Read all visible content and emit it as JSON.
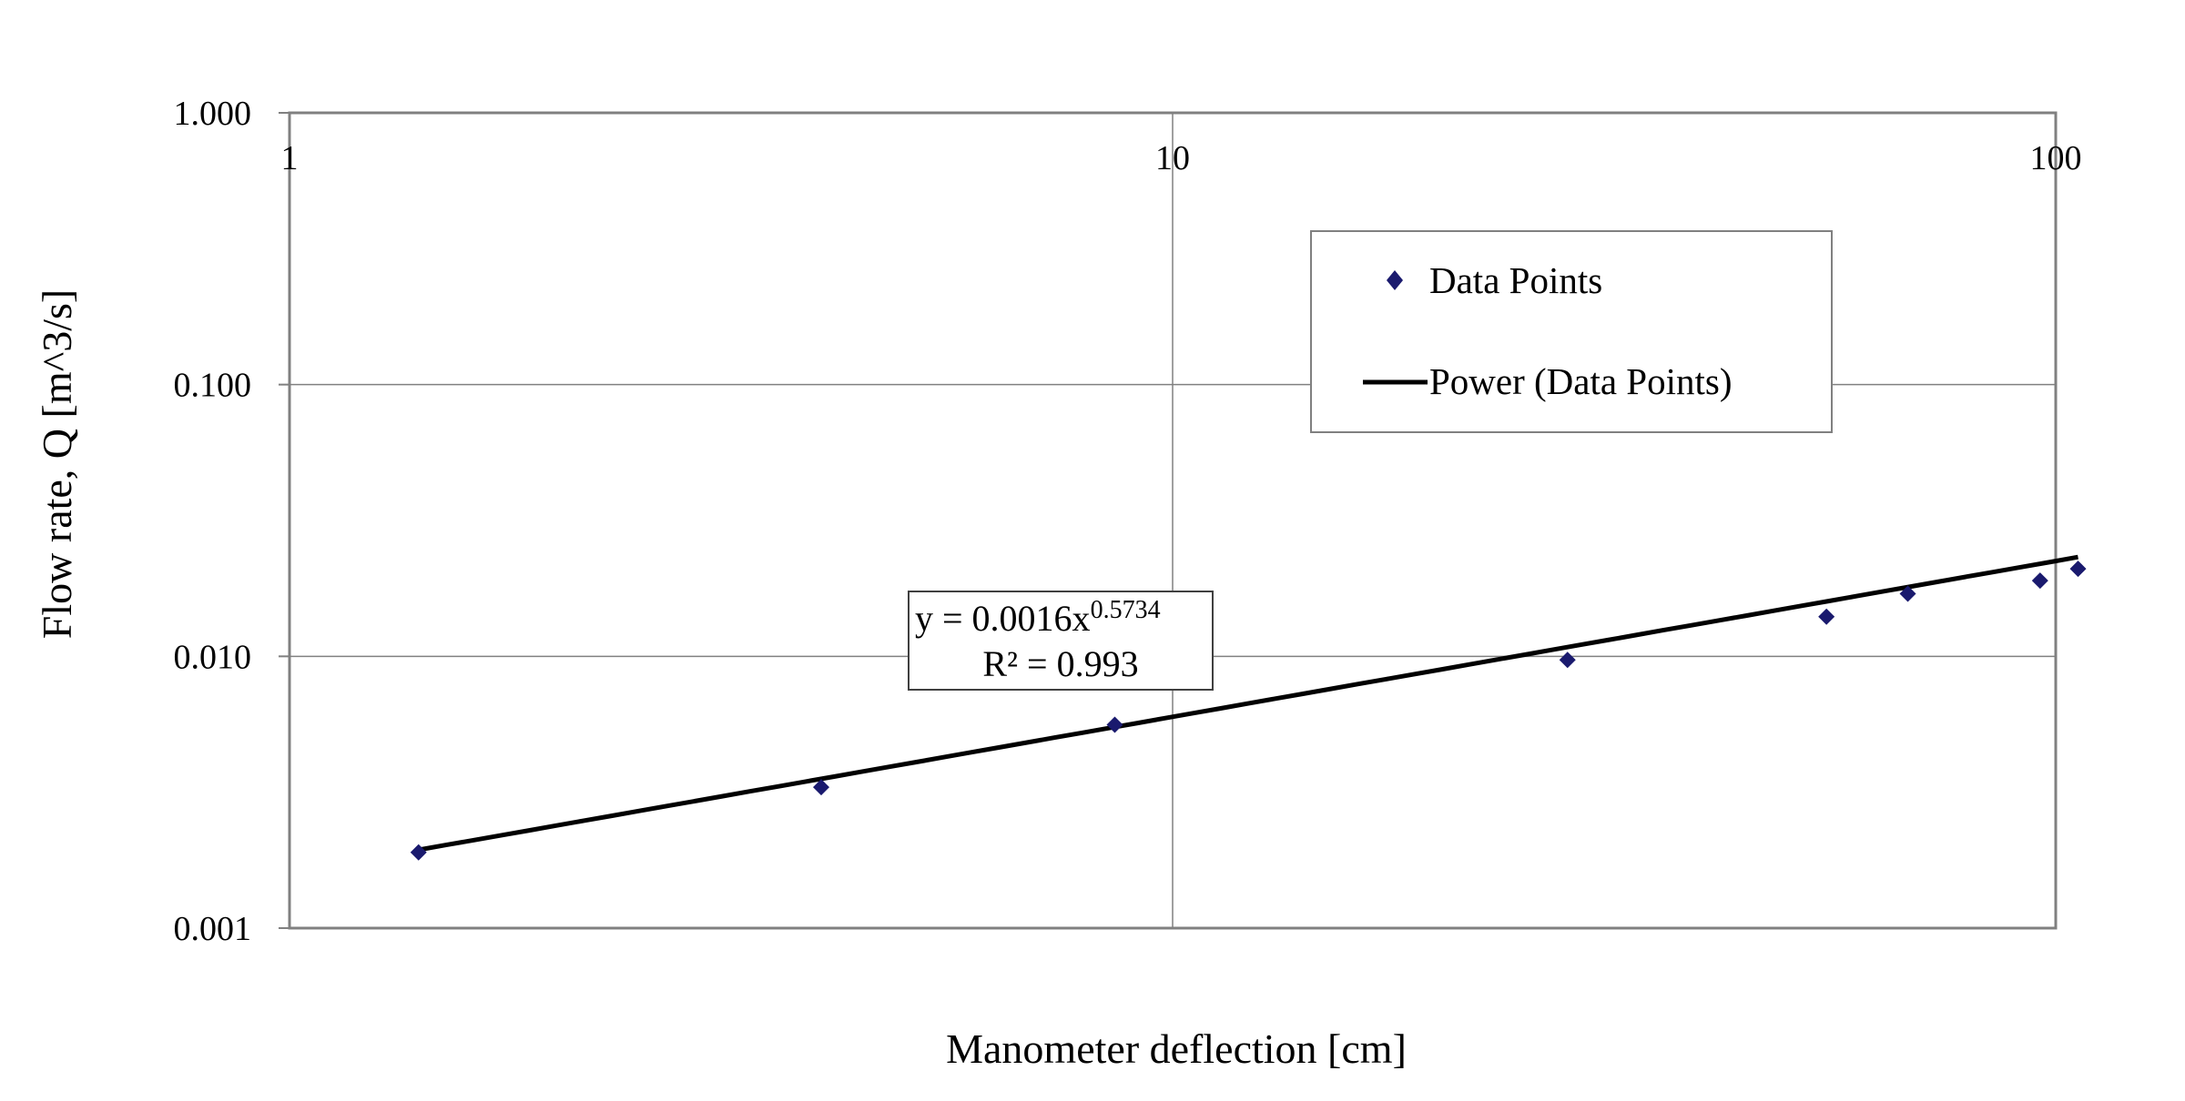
{
  "chart_data": {
    "type": "scatter",
    "xlabel": "Manometer deflection [cm]",
    "ylabel": "Flow rate, Q [m^3/s]",
    "x_scale": "log",
    "y_scale": "log",
    "xlim": [
      1,
      100
    ],
    "ylim": [
      0.001,
      1
    ],
    "x_ticks": [
      "1",
      "10",
      "100"
    ],
    "y_ticks": [
      "1.000",
      "0.100",
      "0.010",
      "0.001"
    ],
    "grid": true,
    "legend_position": "top-right",
    "series": [
      {
        "name": "Data Points",
        "type": "scatter",
        "marker": "diamond",
        "color": "#1a1a6e",
        "x": [
          1.4,
          4.0,
          8.6,
          28.0,
          55.0,
          68.0,
          96.0,
          106.0
        ],
        "y": [
          0.0019,
          0.0033,
          0.0056,
          0.0097,
          0.014,
          0.017,
          0.019,
          0.021
        ]
      },
      {
        "name": "Power (Data Points)",
        "type": "line",
        "color": "#000000",
        "coefficient": 0.0016,
        "exponent": 0.5734,
        "x_range": [
          1.4,
          106.0
        ]
      }
    ],
    "trendline_label": {
      "equation_prefix": "y = 0.0016x",
      "equation_exponent": "0.5734",
      "r_squared": "R² = 0.993"
    }
  }
}
